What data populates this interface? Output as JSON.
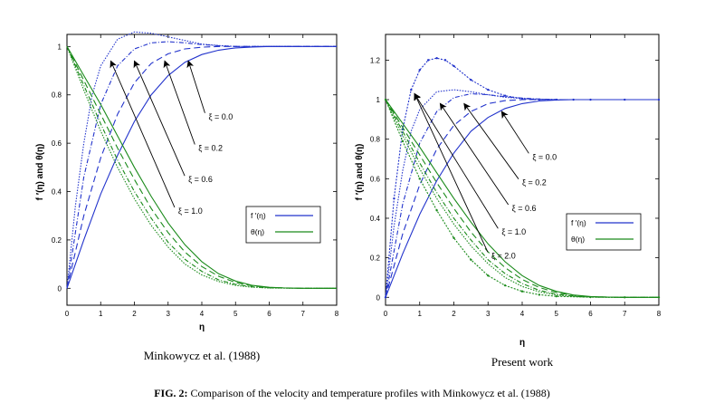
{
  "figure_caption": {
    "label": "FIG.  2:",
    "text": " Comparison of the velocity and temperature profiles with Minkowycz et al. (1988)"
  },
  "colors": {
    "velocity": "#2233cc",
    "temperature": "#1a8a1a"
  },
  "chart_data": [
    {
      "type": "line",
      "caption": "Minkowycz et al. (1988)",
      "xlabel": "η",
      "ylabel": "f ′(η) and θ(η)",
      "xlim": [
        0,
        8
      ],
      "ylim": [
        -0.07,
        1.05
      ],
      "xticks": [
        "0",
        "1",
        "2",
        "3",
        "4",
        "5",
        "6",
        "7",
        "8"
      ],
      "yticks": [
        {
          "v": 0,
          "label": "0"
        },
        {
          "v": 0.2,
          "label": "0.2"
        },
        {
          "v": 0.4,
          "label": "0.4"
        },
        {
          "v": 0.6,
          "label": "0.6"
        },
        {
          "v": 0.8,
          "label": "0.8"
        },
        {
          "v": 1,
          "label": "1"
        }
      ],
      "grid": false,
      "legend": {
        "position": "right",
        "entries": [
          {
            "label": "f ′(η)",
            "color": "#2233cc"
          },
          {
            "label": "θ(η)",
            "color": "#1a8a1a"
          }
        ]
      },
      "annotations": [
        {
          "text": "ξ = 0.0",
          "lx": 4.2,
          "ly": 0.71,
          "ax": 3.6,
          "ay": 0.94
        },
        {
          "text": "ξ = 0.2",
          "lx": 3.9,
          "ly": 0.58,
          "ax": 2.9,
          "ay": 0.94
        },
        {
          "text": "ξ = 0.6",
          "lx": 3.6,
          "ly": 0.45,
          "ax": 2.0,
          "ay": 0.94
        },
        {
          "text": "ξ = 1.0",
          "lx": 3.3,
          "ly": 0.32,
          "ax": 1.3,
          "ay": 0.94
        }
      ],
      "series": [
        {
          "name": "ξ = 0.0",
          "var": "f ′(η)",
          "color": "#2233cc",
          "dash": "",
          "x": [
            0,
            0.5,
            1,
            1.5,
            2,
            2.5,
            3,
            3.5,
            4,
            4.5,
            5,
            5.5,
            6,
            7,
            8
          ],
          "y": [
            0,
            0.2,
            0.39,
            0.55,
            0.69,
            0.8,
            0.88,
            0.935,
            0.967,
            0.985,
            0.994,
            0.998,
            1,
            1,
            1
          ]
        },
        {
          "name": "ξ = 0.2",
          "var": "f ′(η)",
          "color": "#2233cc",
          "dash": "7,4",
          "x": [
            0,
            0.5,
            1,
            1.5,
            2,
            2.5,
            3,
            3.5,
            4,
            4.5,
            5,
            5.5,
            6,
            7,
            8
          ],
          "y": [
            0,
            0.3,
            0.54,
            0.72,
            0.85,
            0.93,
            0.97,
            0.99,
            0.997,
            1,
            1,
            1,
            1,
            1,
            1
          ]
        },
        {
          "name": "ξ = 0.6",
          "var": "f ′(η)",
          "color": "#2233cc",
          "dash": "5,2,1,2",
          "x": [
            0,
            0.5,
            1,
            1.5,
            2,
            2.5,
            3,
            3.5,
            4,
            4.5,
            5,
            5.5,
            6,
            7,
            8
          ],
          "y": [
            0,
            0.46,
            0.76,
            0.92,
            0.99,
            1.015,
            1.02,
            1.015,
            1.008,
            1.003,
            1,
            1,
            1,
            1,
            1
          ]
        },
        {
          "name": "ξ = 1.0",
          "var": "f ′(η)",
          "color": "#2233cc",
          "dash": "1.5,1.5",
          "x": [
            0,
            0.25,
            0.5,
            0.75,
            1,
            1.5,
            2,
            2.5,
            3,
            3.5,
            4,
            4.5,
            5,
            5.5,
            6,
            7,
            8
          ],
          "y": [
            0,
            0.34,
            0.6,
            0.8,
            0.92,
            1.03,
            1.06,
            1.055,
            1.04,
            1.025,
            1.01,
            1.004,
            1,
            1,
            1,
            1,
            1
          ]
        },
        {
          "name": "ξ = 0.0",
          "var": "θ(η)",
          "color": "#1a8a1a",
          "dash": "",
          "x": [
            0,
            0.5,
            1,
            1.5,
            2,
            2.5,
            3,
            3.5,
            4,
            4.5,
            5,
            5.5,
            6,
            6.5,
            7,
            8
          ],
          "y": [
            1,
            0.88,
            0.76,
            0.63,
            0.5,
            0.38,
            0.27,
            0.18,
            0.11,
            0.06,
            0.03,
            0.012,
            0.004,
            0.001,
            0,
            0
          ]
        },
        {
          "name": "ξ = 0.2",
          "var": "θ(η)",
          "color": "#1a8a1a",
          "dash": "7,4",
          "x": [
            0,
            0.5,
            1,
            1.5,
            2,
            2.5,
            3,
            3.5,
            4,
            4.5,
            5,
            5.5,
            6,
            7,
            8
          ],
          "y": [
            1,
            0.86,
            0.72,
            0.58,
            0.45,
            0.33,
            0.23,
            0.15,
            0.09,
            0.05,
            0.024,
            0.01,
            0.003,
            0,
            0
          ]
        },
        {
          "name": "ξ = 0.6",
          "var": "θ(η)",
          "color": "#1a8a1a",
          "dash": "5,2,1,2",
          "x": [
            0,
            0.5,
            1,
            1.5,
            2,
            2.5,
            3,
            3.5,
            4,
            4.5,
            5,
            5.5,
            6,
            7,
            8
          ],
          "y": [
            1,
            0.84,
            0.68,
            0.53,
            0.4,
            0.29,
            0.19,
            0.12,
            0.07,
            0.035,
            0.016,
            0.006,
            0.002,
            0,
            0
          ]
        },
        {
          "name": "ξ = 1.0",
          "var": "θ(η)",
          "color": "#1a8a1a",
          "dash": "1.5,1.5",
          "x": [
            0,
            0.5,
            1,
            1.5,
            2,
            2.5,
            3,
            3.5,
            4,
            4.5,
            5,
            5.5,
            6,
            7,
            8
          ],
          "y": [
            1,
            0.82,
            0.65,
            0.5,
            0.37,
            0.26,
            0.17,
            0.1,
            0.055,
            0.028,
            0.012,
            0.004,
            0.001,
            0,
            0
          ]
        }
      ]
    },
    {
      "type": "line",
      "caption": "Present work",
      "xlabel": "η",
      "ylabel": "f ′(η) and θ(η)",
      "xlim": [
        0,
        8
      ],
      "ylim": [
        -0.04,
        1.33
      ],
      "xticks": [
        "0",
        "1",
        "2",
        "3",
        "4",
        "5",
        "6",
        "7",
        "8"
      ],
      "yticks": [
        {
          "v": 0,
          "label": "0"
        },
        {
          "v": 0.2,
          "label": "0.2"
        },
        {
          "v": 0.4,
          "label": "0.4"
        },
        {
          "v": 0.6,
          "label": "0.6"
        },
        {
          "v": 0.8,
          "label": "0.8"
        },
        {
          "v": 1,
          "label": "1"
        },
        {
          "v": 1.2,
          "label": "1.2"
        }
      ],
      "grid": false,
      "legend": {
        "position": "right",
        "entries": [
          {
            "label": "f ′(η)",
            "color": "#2233cc"
          },
          {
            "label": "θ(η)",
            "color": "#1a8a1a"
          }
        ]
      },
      "annotations": [
        {
          "text": "ξ = 0.0",
          "lx": 4.3,
          "ly": 0.71,
          "ax": 3.4,
          "ay": 0.94
        },
        {
          "text": "ξ = 0.2",
          "lx": 4.0,
          "ly": 0.58,
          "ax": 2.3,
          "ay": 0.98
        },
        {
          "text": "ξ = 0.6",
          "lx": 3.7,
          "ly": 0.45,
          "ax": 1.6,
          "ay": 0.98
        },
        {
          "text": "ξ = 1.0",
          "lx": 3.4,
          "ly": 0.33,
          "ax": 0.85,
          "ay": 1.03
        },
        {
          "text": "ξ = 2.0",
          "lx": 3.1,
          "ly": 0.21,
          "ax": 0.85,
          "ay": 1.03
        }
      ],
      "series": [
        {
          "name": "ξ = 0.0",
          "var": "f ′(η)",
          "color": "#2233cc",
          "dash": "",
          "x": [
            0,
            0.5,
            1,
            1.5,
            2,
            2.5,
            3,
            3.5,
            4,
            4.5,
            5,
            5.5,
            6,
            7,
            8
          ],
          "y": [
            0,
            0.22,
            0.42,
            0.59,
            0.73,
            0.84,
            0.91,
            0.955,
            0.98,
            0.993,
            0.998,
            1,
            1,
            1,
            1
          ]
        },
        {
          "name": "ξ = 0.2",
          "var": "f ′(η)",
          "color": "#2233cc",
          "dash": "7,4",
          "x": [
            0,
            0.5,
            1,
            1.5,
            2,
            2.5,
            3,
            3.5,
            4,
            4.5,
            5,
            5.5,
            6,
            7,
            8
          ],
          "y": [
            0,
            0.32,
            0.57,
            0.75,
            0.87,
            0.94,
            0.98,
            0.995,
            1,
            1,
            1,
            1,
            1,
            1,
            1
          ]
        },
        {
          "name": "ξ = 0.6",
          "var": "f ′(η)",
          "color": "#2233cc",
          "dash": "5,2,1,2",
          "x": [
            0,
            0.5,
            1,
            1.5,
            2,
            2.5,
            3,
            3.5,
            4,
            4.5,
            5,
            5.5,
            6,
            7,
            8
          ],
          "y": [
            0,
            0.47,
            0.78,
            0.94,
            1.01,
            1.03,
            1.025,
            1.015,
            1.008,
            1.003,
            1,
            1,
            1,
            1,
            1
          ]
        },
        {
          "name": "ξ = 1.0",
          "var": "f ′(η)",
          "color": "#2233cc",
          "dash": "1.5,1.5",
          "x": [
            0,
            0.25,
            0.5,
            0.75,
            1,
            1.5,
            2,
            2.5,
            3,
            3.5,
            4,
            4.5,
            5,
            6,
            7,
            8
          ],
          "y": [
            0,
            0.36,
            0.64,
            0.84,
            0.95,
            1.04,
            1.05,
            1.04,
            1.025,
            1.012,
            1.005,
            1.002,
            1,
            1,
            1,
            1
          ]
        },
        {
          "name": "ξ = 2.0",
          "var": "f ′(η)",
          "color": "#2233cc",
          "dash": "2,1.5",
          "x": [
            0,
            0.25,
            0.5,
            0.75,
            1,
            1.25,
            1.5,
            1.75,
            2,
            2.5,
            3,
            3.5,
            4,
            4.5,
            5,
            5.5,
            6,
            7,
            8
          ],
          "y": [
            0,
            0.5,
            0.85,
            1.05,
            1.15,
            1.2,
            1.21,
            1.2,
            1.17,
            1.1,
            1.05,
            1.02,
            1.005,
            1.001,
            1,
            1,
            1,
            1,
            1
          ]
        },
        {
          "name": "ξ = 0.0",
          "var": "θ(η)",
          "color": "#1a8a1a",
          "dash": "",
          "x": [
            0,
            0.5,
            1,
            1.5,
            2,
            2.5,
            3,
            3.5,
            4,
            4.5,
            5,
            5.5,
            6,
            6.5,
            7,
            8
          ],
          "y": [
            1,
            0.88,
            0.76,
            0.63,
            0.5,
            0.38,
            0.27,
            0.18,
            0.11,
            0.06,
            0.03,
            0.012,
            0.004,
            0.001,
            0,
            0
          ]
        },
        {
          "name": "ξ = 0.2",
          "var": "θ(η)",
          "color": "#1a8a1a",
          "dash": "7,4",
          "x": [
            0,
            0.5,
            1,
            1.5,
            2,
            2.5,
            3,
            3.5,
            4,
            4.5,
            5,
            5.5,
            6,
            7,
            8
          ],
          "y": [
            1,
            0.86,
            0.72,
            0.58,
            0.45,
            0.33,
            0.23,
            0.15,
            0.09,
            0.05,
            0.024,
            0.01,
            0.003,
            0,
            0
          ]
        },
        {
          "name": "ξ = 0.6",
          "var": "θ(η)",
          "color": "#1a8a1a",
          "dash": "5,2,1,2",
          "x": [
            0,
            0.5,
            1,
            1.5,
            2,
            2.5,
            3,
            3.5,
            4,
            4.5,
            5,
            5.5,
            6,
            7,
            8
          ],
          "y": [
            1,
            0.84,
            0.68,
            0.53,
            0.4,
            0.29,
            0.19,
            0.12,
            0.07,
            0.035,
            0.016,
            0.006,
            0.002,
            0,
            0
          ]
        },
        {
          "name": "ξ = 1.0",
          "var": "θ(η)",
          "color": "#1a8a1a",
          "dash": "1.5,1.5",
          "x": [
            0,
            0.5,
            1,
            1.5,
            2,
            2.5,
            3,
            3.5,
            4,
            4.5,
            5,
            5.5,
            6,
            7,
            8
          ],
          "y": [
            1,
            0.82,
            0.65,
            0.5,
            0.37,
            0.26,
            0.17,
            0.1,
            0.055,
            0.028,
            0.012,
            0.004,
            0.001,
            0,
            0
          ]
        },
        {
          "name": "ξ = 2.0",
          "var": "θ(η)",
          "color": "#1a8a1a",
          "dash": "2,1.5",
          "x": [
            0,
            0.5,
            1,
            1.5,
            2,
            2.5,
            3,
            3.5,
            4,
            4.5,
            5,
            6,
            7,
            8
          ],
          "y": [
            1,
            0.79,
            0.6,
            0.44,
            0.3,
            0.19,
            0.11,
            0.06,
            0.03,
            0.013,
            0.005,
            0.001,
            0,
            0
          ]
        }
      ]
    }
  ]
}
